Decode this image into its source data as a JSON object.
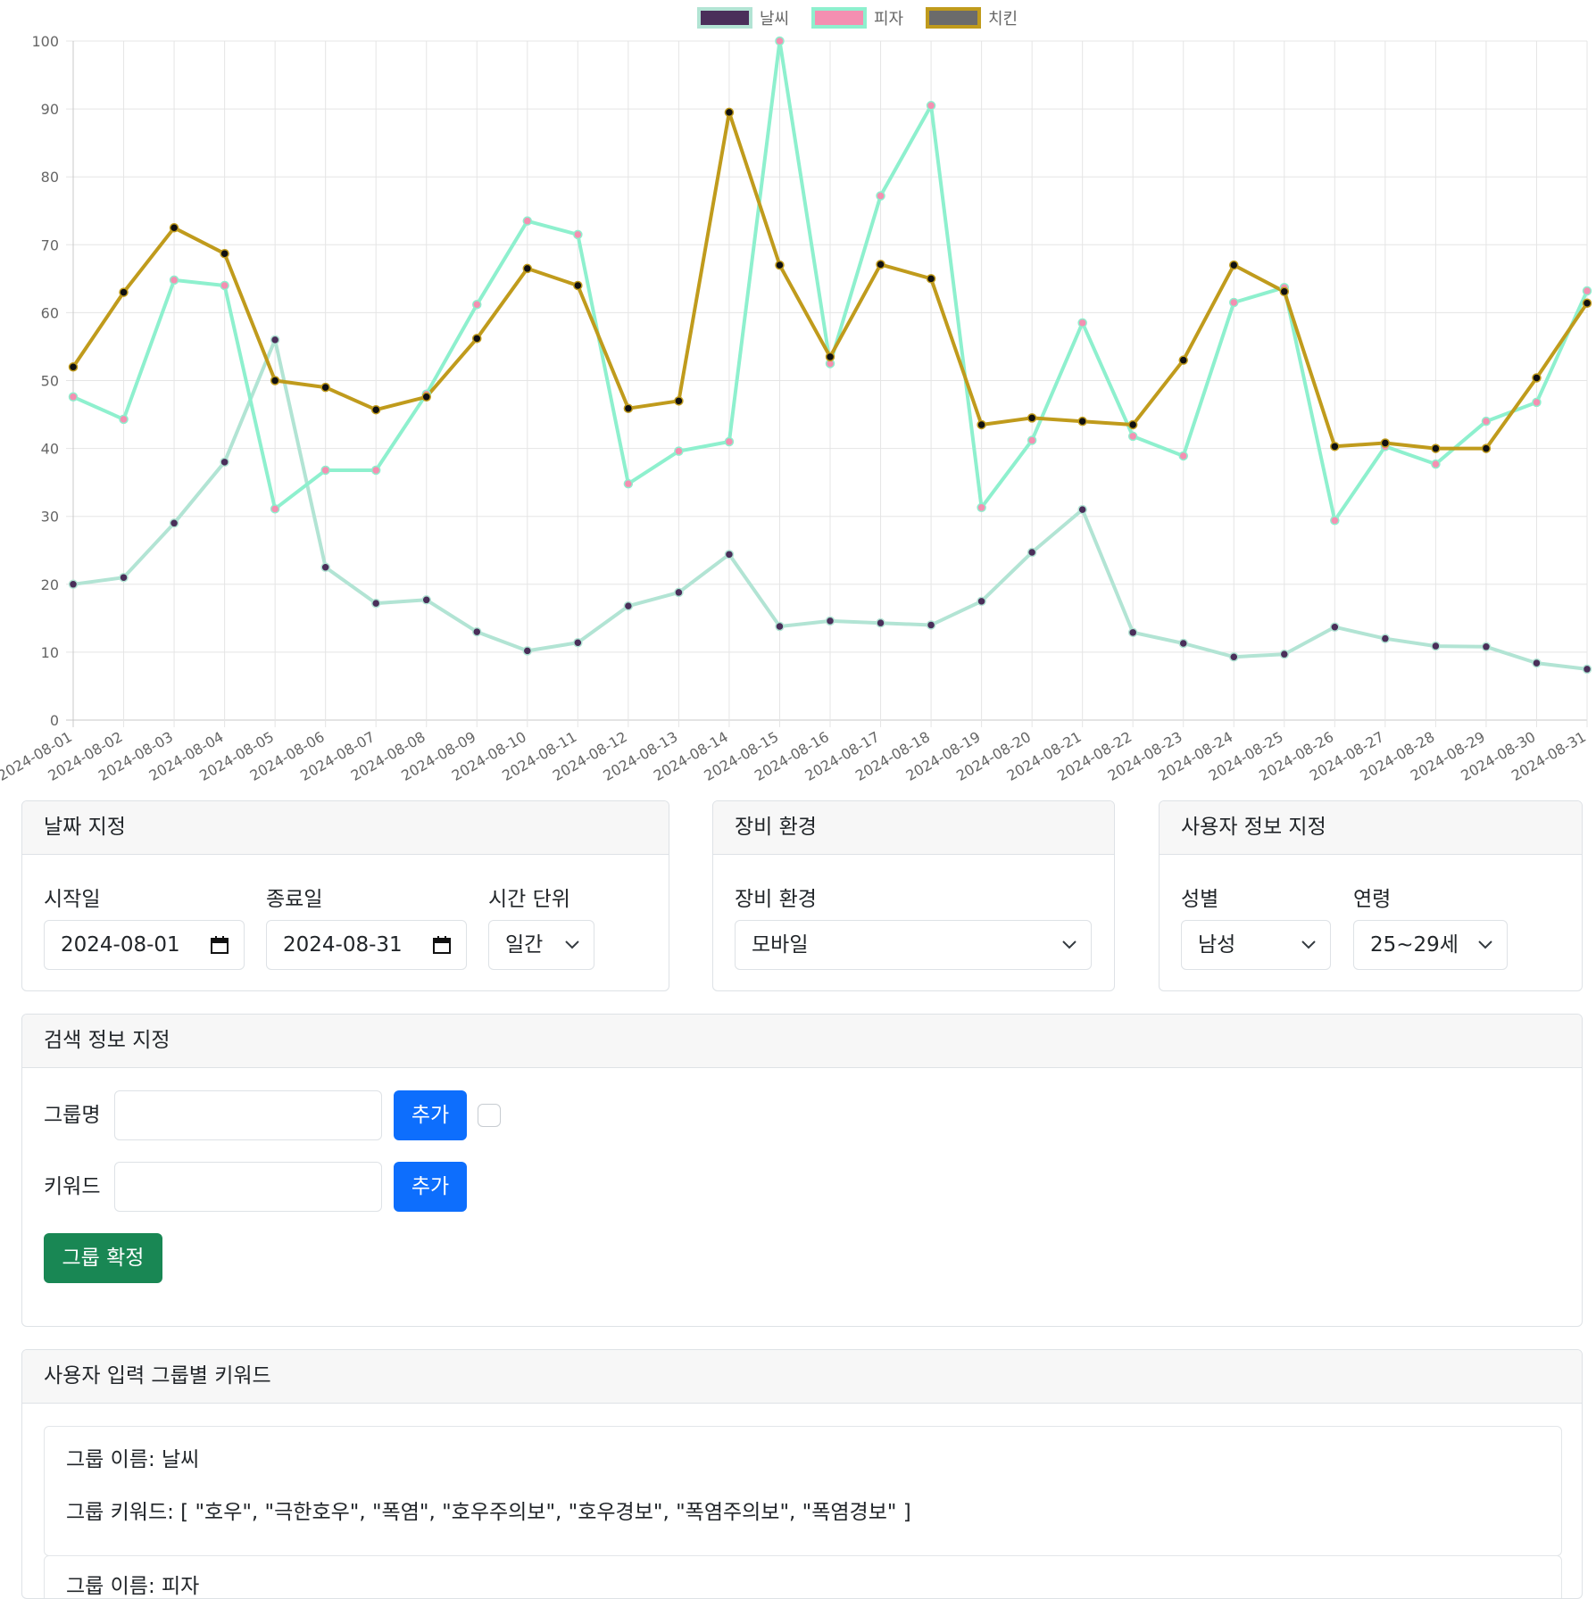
{
  "chart_data": {
    "type": "line",
    "title": "",
    "xlabel": "",
    "ylabel": "",
    "ylim": [
      0,
      100
    ],
    "yticks": [
      0,
      10,
      20,
      30,
      40,
      50,
      60,
      70,
      80,
      90,
      100
    ],
    "grid": true,
    "legend_position": "top",
    "categories": [
      "2024-08-01",
      "2024-08-02",
      "2024-08-03",
      "2024-08-04",
      "2024-08-05",
      "2024-08-06",
      "2024-08-07",
      "2024-08-08",
      "2024-08-09",
      "2024-08-10",
      "2024-08-11",
      "2024-08-12",
      "2024-08-13",
      "2024-08-14",
      "2024-08-15",
      "2024-08-16",
      "2024-08-17",
      "2024-08-18",
      "2024-08-19",
      "2024-08-20",
      "2024-08-21",
      "2024-08-22",
      "2024-08-23",
      "2024-08-24",
      "2024-08-25",
      "2024-08-26",
      "2024-08-27",
      "2024-08-28",
      "2024-08-29",
      "2024-08-30",
      "2024-08-31"
    ],
    "series": [
      {
        "name": "날씨",
        "legend_color": "#4a2f5a",
        "line_color": "#b2e4d4",
        "point_color": "#4a2f5a",
        "values": [
          20,
          21,
          29,
          38,
          56,
          22.5,
          17.2,
          17.7,
          13,
          10.2,
          11.4,
          16.8,
          18.8,
          24.4,
          13.8,
          14.6,
          14.3,
          14,
          17.5,
          24.7,
          31,
          12.9,
          11.3,
          9.3,
          9.7,
          13.7,
          12,
          10.9,
          10.8,
          8.4,
          7.5
        ]
      },
      {
        "name": "피자",
        "legend_color": "#f48fb1",
        "line_color": "#8ef0ce",
        "point_color": "#f48fb1",
        "values": [
          47.6,
          44.3,
          64.8,
          64,
          31.1,
          36.8,
          36.8,
          48,
          61.2,
          73.5,
          71.5,
          34.8,
          39.6,
          41,
          100,
          52.5,
          77.2,
          90.5,
          31.3,
          41.2,
          58.5,
          41.8,
          38.9,
          61.5,
          63.7,
          29.4,
          40.3,
          37.7,
          44,
          46.8,
          63.2
        ]
      },
      {
        "name": "치킨",
        "legend_color": "#6b6b6b",
        "line_color": "#c09b1c",
        "point_color": "#111111",
        "values": [
          52,
          63,
          72.5,
          68.7,
          50,
          49,
          45.7,
          47.6,
          56.2,
          66.5,
          64,
          45.9,
          47,
          89.5,
          67,
          53.5,
          67.1,
          65,
          43.5,
          44.5,
          44,
          43.5,
          53,
          67,
          63.1,
          40.3,
          40.8,
          40,
          40,
          50.4,
          61.4
        ]
      }
    ]
  },
  "date_card": {
    "title": "날짜 지정",
    "start_label": "시작일",
    "start_value": "2024-08-01",
    "end_label": "종료일",
    "end_value": "2024-08-31",
    "unit_label": "시간 단위",
    "unit_value": "일간"
  },
  "device_card": {
    "title": "장비 환경",
    "device_label": "장비 환경",
    "device_value": "모바일"
  },
  "user_card": {
    "title": "사용자 정보 지정",
    "gender_label": "성별",
    "gender_value": "남성",
    "age_label": "연령",
    "age_value": "25~29세"
  },
  "search_card": {
    "title": "검색 정보 지정",
    "group_label": "그룹명",
    "group_value": "",
    "group_add": "추가",
    "keyword_label": "키워드",
    "keyword_value": "",
    "keyword_add": "추가",
    "confirm": "그룹 확정"
  },
  "groups_card": {
    "title": "사용자 입력 그룹별 키워드",
    "groups": [
      {
        "name_line": "그룹 이름: 날씨",
        "keywords_line": "그룹 키워드: [ \"호우\", \"극한호우\", \"폭염\", \"호우주의보\", \"호우경보\", \"폭염주의보\", \"폭염경보\" ]"
      },
      {
        "name_line": "그룹 이름: 피자"
      }
    ]
  }
}
